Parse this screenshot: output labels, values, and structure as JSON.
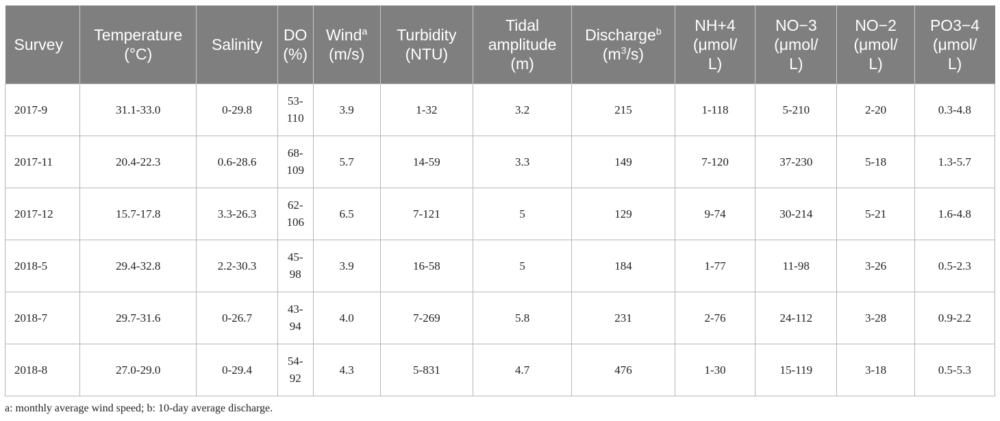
{
  "header": {
    "survey": "Survey",
    "temperature": [
      "Temperature",
      "(°C)"
    ],
    "salinity": "Salinity",
    "do": [
      "DO",
      "(%)"
    ],
    "wind": {
      "label": "Wind",
      "sup": "a",
      "unit": "(m/s)"
    },
    "turbidity": [
      "Turbidity",
      "(NTU)"
    ],
    "tidal": [
      "Tidal",
      "amplitude",
      "(m)"
    ],
    "discharge": {
      "label": "Discharge",
      "sup": "b",
      "unit_pre": "(m",
      "unit_sup": "3",
      "unit_post": "/s)"
    },
    "nh4": {
      "base": "NH",
      "sup": "+",
      "sub": "4",
      "unit1": "(μmol/",
      "unit2": "L)"
    },
    "no3": {
      "base": "NO",
      "sup": "−",
      "sub": "3",
      "unit1": "(μmol/",
      "unit2": "L)"
    },
    "no2": {
      "base": "NO",
      "sup": "−",
      "sub": "2",
      "unit1": "(μmol/",
      "unit2": "L)"
    },
    "po4": {
      "base": "PO",
      "sup": "3−",
      "sub": "4",
      "unit1": "(μmol/",
      "unit2": "L)"
    }
  },
  "rows": [
    {
      "survey": "2017-9",
      "temperature": "31.1-33.0",
      "salinity": "0-29.8",
      "do": [
        "53-",
        "110"
      ],
      "wind": "3.9",
      "turbidity": "1-32",
      "tidal": "3.2",
      "discharge": "215",
      "nh4": "1-118",
      "no3": "5-210",
      "no2": "2-20",
      "po4": "0.3-4.8"
    },
    {
      "survey": "2017-11",
      "temperature": "20.4-22.3",
      "salinity": "0.6-28.6",
      "do": [
        "68-",
        "109"
      ],
      "wind": "5.7",
      "turbidity": "14-59",
      "tidal": "3.3",
      "discharge": "149",
      "nh4": "7-120",
      "no3": "37-230",
      "no2": "5-18",
      "po4": "1.3-5.7"
    },
    {
      "survey": "2017-12",
      "temperature": "15.7-17.8",
      "salinity": "3.3-26.3",
      "do": [
        "62-",
        "106"
      ],
      "wind": "6.5",
      "turbidity": "7-121",
      "tidal": "5",
      "discharge": "129",
      "nh4": "9-74",
      "no3": "30-214",
      "no2": "5-21",
      "po4": "1.6-4.8"
    },
    {
      "survey": "2018-5",
      "temperature": "29.4-32.8",
      "salinity": "2.2-30.3",
      "do": [
        "45-",
        "98"
      ],
      "wind": "3.9",
      "turbidity": "16-58",
      "tidal": "5",
      "discharge": "184",
      "nh4": "1-77",
      "no3": "11-98",
      "no2": "3-26",
      "po4": "0.5-2.3"
    },
    {
      "survey": "2018-7",
      "temperature": "29.7-31.6",
      "salinity": "0-26.7",
      "do": [
        "43-",
        "94"
      ],
      "wind": "4.0",
      "turbidity": "7-269",
      "tidal": "5.8",
      "discharge": "231",
      "nh4": "2-76",
      "no3": "24-112",
      "no2": "3-28",
      "po4": "0.9-2.2"
    },
    {
      "survey": "2018-8",
      "temperature": "27.0-29.0",
      "salinity": "0-29.4",
      "do": [
        "54-",
        "92"
      ],
      "wind": "4.3",
      "turbidity": "5-831",
      "tidal": "4.7",
      "discharge": "476",
      "nh4": "1-30",
      "no3": "15-119",
      "no2": "3-18",
      "po4": "0.5-5.3"
    }
  ],
  "footnote": "a: monthly average wind speed; b: 10-day average discharge."
}
